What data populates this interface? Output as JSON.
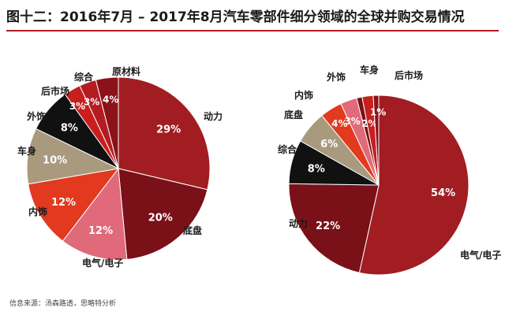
{
  "figure": {
    "title": "图十二：2016年7月 – 2017年8月汽车零部件细分领域的全球并购交易情况",
    "source": "信息来源：汤森路透，思略特分析"
  },
  "chart_data": [
    {
      "type": "pie",
      "title": "",
      "slices": [
        {
          "label": "动力",
          "value": 29,
          "display": "29%",
          "color": "#a11d22",
          "text_color": "#ffffff"
        },
        {
          "label": "底盘",
          "value": 20,
          "display": "20%",
          "color": "#7a1018",
          "text_color": "#ffffff"
        },
        {
          "label": "电气/电子",
          "value": 12,
          "display": "12%",
          "color": "#e06a7a",
          "text_color": "#ffffff"
        },
        {
          "label": "内饰",
          "value": 12,
          "display": "12%",
          "color": "#e2391f",
          "text_color": "#ffffff"
        },
        {
          "label": "车身",
          "value": 10,
          "display": "10%",
          "color": "#a99a7e",
          "text_color": "#ffffff"
        },
        {
          "label": "外饰",
          "value": 8,
          "display": "8%",
          "color": "#111111",
          "text_color": "#ffffff"
        },
        {
          "label": "后市场",
          "value": 3,
          "display": "3%",
          "color": "#c81e1e",
          "text_color": "#ffffff"
        },
        {
          "label": "综合",
          "value": 3,
          "display": "3%",
          "color": "#b41c22",
          "text_color": "#ffffff"
        },
        {
          "label": "原材料",
          "value": 4,
          "display": "4%",
          "color": "#8a1218",
          "text_color": "#ffffff"
        }
      ]
    },
    {
      "type": "pie",
      "title": "",
      "slices": [
        {
          "label": "电气/电子",
          "value": 54,
          "display": "54%",
          "color": "#a11d22",
          "text_color": "#ffffff"
        },
        {
          "label": "动力",
          "value": 22,
          "display": "22%",
          "color": "#7a1018",
          "text_color": "#ffffff"
        },
        {
          "label": "综合",
          "value": 8,
          "display": "8%",
          "color": "#111111",
          "text_color": "#ffffff"
        },
        {
          "label": "底盘",
          "value": 6,
          "display": "6%",
          "color": "#a99a7e",
          "text_color": "#ffffff"
        },
        {
          "label": "内饰",
          "value": 4,
          "display": "4%",
          "color": "#e2391f",
          "text_color": "#ffffff"
        },
        {
          "label": "外饰",
          "value": 3,
          "display": "3%",
          "color": "#e06a7a",
          "text_color": "#ffffff"
        },
        {
          "label": "车身",
          "value": 1,
          "display": "",
          "color": "#7a1018",
          "text_color": "#ffffff"
        },
        {
          "label": "后市场",
          "value": 2,
          "display": "2%",
          "color": "#c81e1e",
          "text_color": "#ffffff"
        },
        {
          "label": "",
          "value": 1,
          "display": "1%",
          "color": "#8a1218",
          "text_color": "#ffffff"
        }
      ]
    }
  ]
}
